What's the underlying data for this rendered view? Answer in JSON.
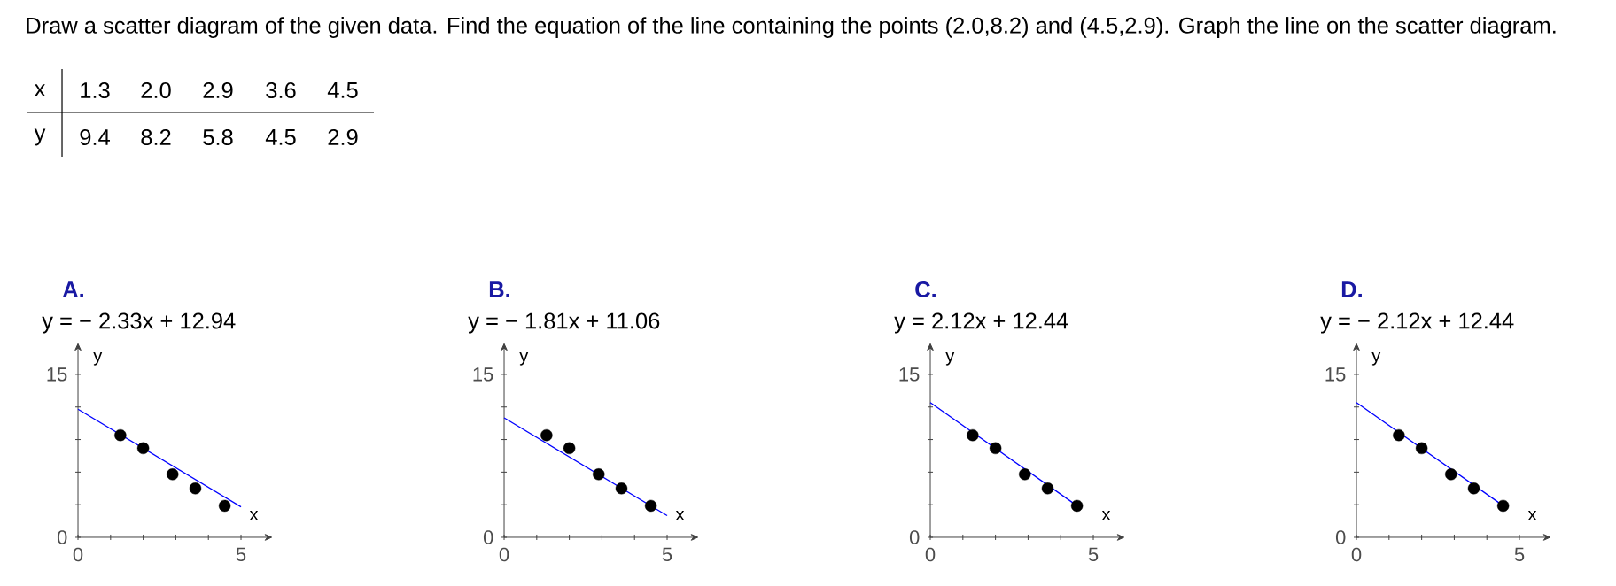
{
  "chart_data": [
    {
      "type": "other",
      "annotations": [
        "Draw a scatter diagram of the given data. Find the equation of the line containing the points (2.0,8.2) and (4.5,2.9). Graph the line on the scatter diagram.",
        "x",
        "1.3",
        "2.0",
        "2.9",
        "3.6",
        "4.5",
        "y",
        "9.4",
        "8.2",
        "5.8",
        "4.5",
        "2.9"
      ]
    },
    {
      "type": "scatter",
      "title": "A.",
      "subtitle": "y =  − 2.33x + 12.94",
      "xlabel": "x",
      "ylabel": "y",
      "xlim": [
        0,
        5.8
      ],
      "ylim": [
        0,
        17.4
      ],
      "xticks": [
        0,
        {
          "value": 1,
          "label": null
        },
        {
          "value": 2,
          "label": null
        },
        {
          "value": 3,
          "label": null
        },
        {
          "value": 4,
          "label": null
        },
        5
      ],
      "yticks": [
        0,
        {
          "value": 3,
          "label": null
        },
        {
          "value": 6,
          "label": null
        },
        {
          "value": 9,
          "label": null
        },
        {
          "value": 12,
          "label": null
        },
        15
      ],
      "series": [
        {
          "color": "#000000",
          "x": [
            1.3,
            2.0,
            2.9,
            3.6,
            4.5
          ],
          "values": [
            9.4,
            8.2,
            5.8,
            4.5,
            2.9
          ]
        },
        {
          "type": "line",
          "marker": "none",
          "color": "#0000ff",
          "x": [
            0,
            5
          ],
          "values": [
            11.8,
            2.8
          ]
        }
      ]
    },
    {
      "type": "scatter",
      "title": "B.",
      "subtitle": "y =  − 1.81x + 11.06",
      "xlabel": "x",
      "ylabel": "y",
      "xlim": [
        0,
        5.8
      ],
      "ylim": [
        0,
        17.4
      ],
      "xticks": [
        0,
        {
          "value": 1,
          "label": null
        },
        {
          "value": 2,
          "label": null
        },
        {
          "value": 3,
          "label": null
        },
        {
          "value": 4,
          "label": null
        },
        5
      ],
      "yticks": [
        0,
        {
          "value": 3,
          "label": null
        },
        {
          "value": 6,
          "label": null
        },
        {
          "value": 9,
          "label": null
        },
        {
          "value": 12,
          "label": null
        },
        15
      ],
      "series": [
        {
          "color": "#000000",
          "x": [
            1.3,
            2.0,
            2.9,
            3.6,
            4.5
          ],
          "values": [
            9.4,
            8.2,
            5.8,
            4.5,
            2.9
          ]
        },
        {
          "type": "line",
          "marker": "none",
          "color": "#0000ff",
          "x": [
            0,
            5
          ],
          "values": [
            11.0,
            2.0
          ]
        }
      ]
    },
    {
      "type": "scatter",
      "title": "C.",
      "subtitle": "y = 2.12x + 12.44",
      "xlabel": "x",
      "ylabel": "y",
      "xlim": [
        0,
        5.8
      ],
      "ylim": [
        0,
        17.4
      ],
      "xticks": [
        0,
        {
          "value": 1,
          "label": null
        },
        {
          "value": 2,
          "label": null
        },
        {
          "value": 3,
          "label": null
        },
        {
          "value": 4,
          "label": null
        },
        5
      ],
      "yticks": [
        0,
        {
          "value": 3,
          "label": null
        },
        {
          "value": 6,
          "label": null
        },
        {
          "value": 9,
          "label": null
        },
        {
          "value": 12,
          "label": null
        },
        15
      ],
      "series": [
        {
          "color": "#000000",
          "x": [
            1.3,
            2.0,
            2.9,
            3.6,
            4.5
          ],
          "values": [
            9.4,
            8.2,
            5.8,
            4.5,
            2.9
          ]
        },
        {
          "type": "line",
          "marker": "none",
          "color": "#0000ff",
          "x": [
            0,
            4.6
          ],
          "values": [
            12.4,
            2.7
          ]
        }
      ]
    },
    {
      "type": "scatter",
      "title": "D.",
      "subtitle": "y =  − 2.12x + 12.44",
      "xlabel": "x",
      "ylabel": "y",
      "xlim": [
        0,
        5.8
      ],
      "ylim": [
        0,
        17.4
      ],
      "xticks": [
        0,
        {
          "value": 1,
          "label": null
        },
        {
          "value": 2,
          "label": null
        },
        {
          "value": 3,
          "label": null
        },
        {
          "value": 4,
          "label": null
        },
        5
      ],
      "yticks": [
        0,
        {
          "value": 3,
          "label": null
        },
        {
          "value": 6,
          "label": null
        },
        {
          "value": 9,
          "label": null
        },
        {
          "value": 12,
          "label": null
        },
        15
      ],
      "series": [
        {
          "color": "#000000",
          "x": [
            1.3,
            2.0,
            2.9,
            3.6,
            4.5
          ],
          "values": [
            9.4,
            8.2,
            5.8,
            4.5,
            2.9
          ]
        },
        {
          "type": "line",
          "marker": "none",
          "color": "#0000ff",
          "x": [
            0,
            4.6
          ],
          "values": [
            12.4,
            2.7
          ]
        }
      ]
    }
  ]
}
